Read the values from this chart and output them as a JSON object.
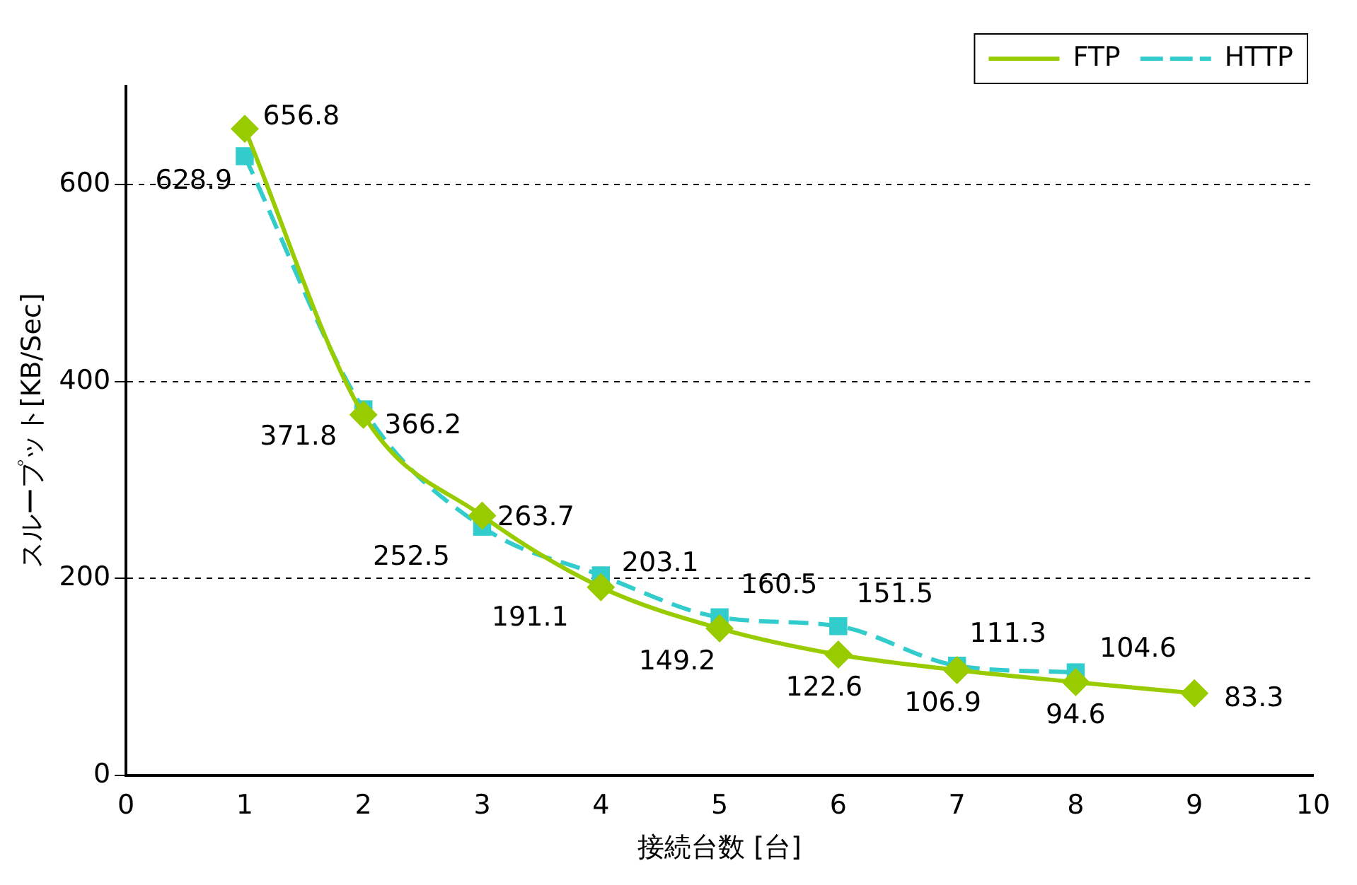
{
  "chart_data": {
    "type": "line",
    "xlabel": "接続台数 [台]",
    "ylabel": "スループット[KB/Sec]",
    "xlim": [
      0,
      10
    ],
    "xticks": [
      0,
      1,
      2,
      3,
      4,
      5,
      6,
      7,
      8,
      9,
      10
    ],
    "ylim": [
      0,
      700
    ],
    "yticks": [
      0,
      200,
      400,
      600
    ],
    "grid": "y",
    "legend": "top right",
    "data_labels": true,
    "series": [
      {
        "name": "FTP",
        "color": "#99cc00",
        "marker": "diamond",
        "line_style": "solid",
        "x": [
          1,
          2,
          3,
          4,
          5,
          6,
          7,
          8,
          9
        ],
        "values": [
          656.8,
          366.2,
          263.7,
          191.1,
          149.2,
          122.6,
          106.9,
          94.6,
          83.3
        ]
      },
      {
        "name": "HTTP",
        "color": "#33cccc",
        "marker": "square",
        "line_style": "dashed",
        "x": [
          1,
          2,
          3,
          4,
          5,
          6,
          7,
          8
        ],
        "values": [
          628.9,
          371.8,
          252.5,
          203.1,
          160.5,
          151.5,
          111.3,
          104.6
        ]
      }
    ]
  }
}
